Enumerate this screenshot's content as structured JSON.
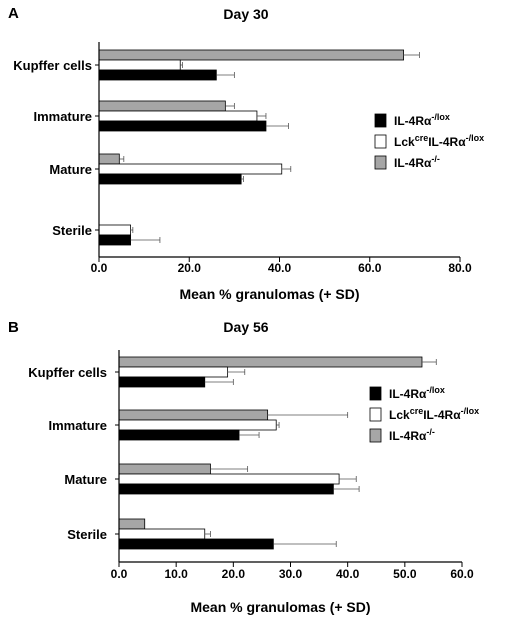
{
  "chart_data": [
    {
      "panel_label": "A",
      "type": "bar",
      "orientation": "horizontal",
      "title": "Day 30",
      "xlabel": "Mean % granulomas (+ SD)",
      "xlim": [
        0,
        80
      ],
      "xticks": [
        "0.0",
        "20.0",
        "40.0",
        "60.0",
        "80.0"
      ],
      "categories": [
        "Kupffer cells",
        "Immature",
        "Mature",
        "Sterile"
      ],
      "series": [
        {
          "name": "IL-4Rα-/-",
          "color": "#a6a6a6",
          "values": [
            67.5,
            28,
            4.5,
            0
          ],
          "errors": [
            3.5,
            2,
            1,
            0
          ]
        },
        {
          "name": "LckcreIL-4Rα-/lox",
          "color": "#ffffff",
          "values": [
            18,
            35,
            40.5,
            7
          ],
          "errors": [
            0.5,
            2,
            2,
            0.5
          ]
        },
        {
          "name": "IL-4Rα-/lox",
          "color": "#000000",
          "values": [
            26,
            37,
            31.5,
            7
          ],
          "errors": [
            4,
            5,
            0.5,
            6.5
          ]
        }
      ],
      "legend": {
        "placement": "right",
        "entries": [
          {
            "base": "IL-4Rα",
            "sup": "-/lox",
            "color": "#000000"
          },
          {
            "pre": "Lck",
            "presup": "cre",
            "base": "IL-4Rα",
            "sup": "-/lox",
            "color": "#ffffff"
          },
          {
            "base": "IL-4Rα",
            "sup": "-/-",
            "color": "#a6a6a6"
          }
        ]
      }
    },
    {
      "panel_label": "B",
      "type": "bar",
      "orientation": "horizontal",
      "title": "Day 56",
      "xlabel": "Mean % granulomas (+ SD)",
      "xlim": [
        0,
        60
      ],
      "xticks": [
        "0.0",
        "10.0",
        "20.0",
        "30.0",
        "40.0",
        "50.0",
        "60.0"
      ],
      "categories": [
        "Kupffer cells",
        "Immature",
        "Mature",
        "Sterile"
      ],
      "series": [
        {
          "name": "IL-4Rα-/-",
          "color": "#a6a6a6",
          "values": [
            53,
            26,
            16,
            4.5
          ],
          "errors": [
            2.5,
            14,
            6.5,
            0
          ]
        },
        {
          "name": "LckcreIL-4Rα-/lox",
          "color": "#ffffff",
          "values": [
            19,
            27.5,
            38.5,
            15
          ],
          "errors": [
            3,
            0.5,
            3,
            1
          ]
        },
        {
          "name": "IL-4Rα-/lox",
          "color": "#000000",
          "values": [
            15,
            21,
            37.5,
            27
          ],
          "errors": [
            5,
            3.5,
            4.5,
            11
          ]
        }
      ],
      "legend": {
        "placement": "right",
        "entries": [
          {
            "base": "IL-4Rα",
            "sup": "-/lox",
            "color": "#000000"
          },
          {
            "pre": "Lck",
            "presup": "cre",
            "base": "IL-4Rα",
            "sup": "-/lox",
            "color": "#ffffff"
          },
          {
            "base": "IL-4Rα",
            "sup": "-/-",
            "color": "#a6a6a6"
          }
        ]
      }
    }
  ]
}
